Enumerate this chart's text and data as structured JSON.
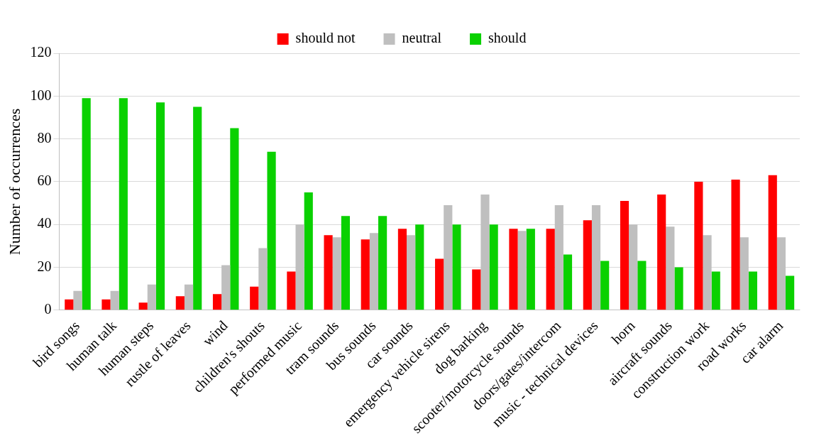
{
  "chart_data": {
    "type": "bar",
    "ylabel": "Number of occurrences",
    "categories": [
      "bird songs",
      "human talk",
      "human steps",
      "rustle of leaves",
      "wind",
      "children's shouts",
      "performed music",
      "tram sounds",
      "bus sounds",
      "car sounds",
      "emergency vehicle sirens",
      "dog barking",
      "scooter/motorcycle sounds",
      "doors/gates/intercom",
      "music - technical devices",
      "horn",
      "aircraft sounds",
      "construction work",
      "road works",
      "car alarm"
    ],
    "series": [
      {
        "name": "should not",
        "color": "#ff0000",
        "values": [
          5,
          5,
          3.5,
          6.5,
          7.5,
          11,
          18,
          35,
          33,
          38,
          24,
          19,
          38,
          38,
          42,
          51,
          54,
          60,
          61,
          63
        ]
      },
      {
        "name": "neutral",
        "color": "#bfbfbf",
        "values": [
          9,
          9,
          12,
          12,
          21,
          29,
          40,
          34,
          36,
          35,
          49,
          54,
          37,
          49,
          49,
          40,
          39,
          35,
          34,
          34
        ]
      },
      {
        "name": "should",
        "color": "#0ad100",
        "values": [
          99,
          99,
          97,
          95,
          85,
          74,
          55,
          44,
          44,
          40,
          40,
          40,
          38,
          26,
          23,
          23,
          20,
          18,
          18,
          16
        ]
      }
    ],
    "ylim": [
      0,
      120
    ],
    "yticks": [
      0,
      20,
      40,
      60,
      80,
      100,
      120
    ],
    "grid": "y",
    "legend": "top"
  }
}
